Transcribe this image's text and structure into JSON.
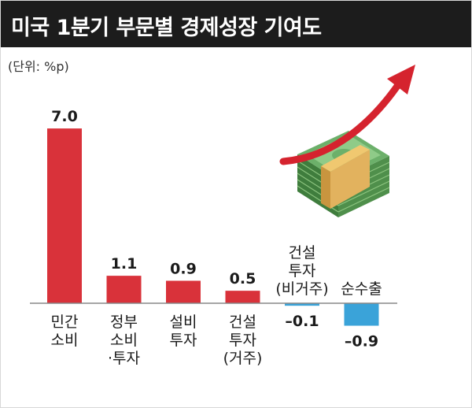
{
  "header": {
    "title": "미국 1분기 부문별 경제성장 기여도"
  },
  "unit_label": "(단위: %p)",
  "colors": {
    "positive": "#d9323a",
    "negative": "#3aa3d9",
    "header_bg": "#1c1c1c",
    "money_green": "#5b9e55",
    "band": "#e2b25e",
    "arrow": "#d5232e"
  },
  "illustration": {
    "icon": "money-stack-growth-arrow-icon"
  },
  "chart_data": {
    "type": "bar",
    "title": "미국 1분기 부문별 경제성장 기여도",
    "ylabel": "(단위: %p)",
    "ylim": [
      -1.0,
      7.3
    ],
    "grid": false,
    "legend": "none",
    "categories": [
      {
        "lines": [
          "민간",
          "소비"
        ],
        "position": "below"
      },
      {
        "lines": [
          "정부",
          "소비",
          "·투자"
        ],
        "position": "below"
      },
      {
        "lines": [
          "설비",
          "투자"
        ],
        "position": "below"
      },
      {
        "lines": [
          "건설",
          "투자",
          "(거주)"
        ],
        "position": "below"
      },
      {
        "lines": [
          "건설",
          "투자",
          "(비거주)"
        ],
        "position": "above"
      },
      {
        "lines": [
          "순수출"
        ],
        "position": "above"
      }
    ],
    "values": [
      7.0,
      1.1,
      0.9,
      0.5,
      -0.1,
      -0.9
    ],
    "value_labels": [
      "7.0",
      "1.1",
      "0.9",
      "0.5",
      "–0.1",
      "–0.9"
    ]
  }
}
